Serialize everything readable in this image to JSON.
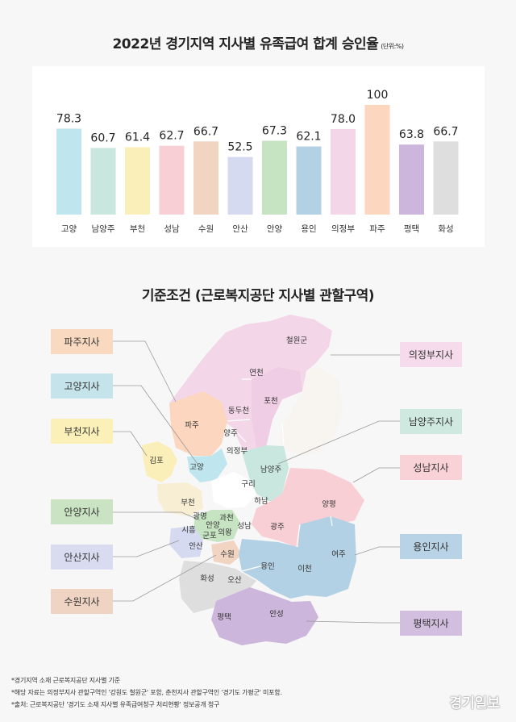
{
  "chart_title": "2022년 경기지역 지사별 유족급여 합계 승인율",
  "chart_unit": "(단위:%)",
  "chart_data": {
    "type": "bar",
    "categories": [
      "고양",
      "남양주",
      "부천",
      "성남",
      "수원",
      "안산",
      "안양",
      "용인",
      "의정부",
      "파주",
      "평택",
      "화성"
    ],
    "values": [
      78.3,
      60.7,
      61.4,
      62.7,
      66.7,
      52.5,
      67.3,
      62.1,
      78.0,
      100,
      63.8,
      66.7
    ],
    "value_labels": [
      "78.3",
      "60.7",
      "61.4",
      "62.7",
      "66.7",
      "52.5",
      "67.3",
      "62.1",
      "78.0",
      "100",
      "63.8",
      "66.7"
    ],
    "colors": [
      "#bfe6ee",
      "#c9e6df",
      "#fbefb9",
      "#f8cfd4",
      "#f2d4c3",
      "#d6daf0",
      "#c6e3c2",
      "#b3d1e4",
      "#f3d7e9",
      "#fcd6bf",
      "#cdb6dc",
      "#dedede"
    ],
    "ylim": [
      0,
      100
    ]
  },
  "map_title": "기준조건 (근로복지공단 지사별 관할구역)",
  "branches_left": [
    {
      "label": "파주지사",
      "color": "#f9d9bf"
    },
    {
      "label": "고양지사",
      "color": "#c4e3ea"
    },
    {
      "label": "부천지사",
      "color": "#fbf0b8"
    },
    {
      "label": "안양지사",
      "color": "#c9e3c3"
    },
    {
      "label": "안산지사",
      "color": "#d9dcf1"
    },
    {
      "label": "수원지사",
      "color": "#efd4c4"
    }
  ],
  "branches_right": [
    {
      "label": "의정부지사",
      "color": "#f5dbeb"
    },
    {
      "label": "남양주지사",
      "color": "#cfe9e1"
    },
    {
      "label": "성남지사",
      "color": "#f8d2d7"
    },
    {
      "label": "용인지사",
      "color": "#b8d3e6"
    },
    {
      "label": "평택지사",
      "color": "#d2bfe0"
    }
  ],
  "regions": [
    "철원군",
    "연천",
    "포천",
    "동두천",
    "파주",
    "양주",
    "의정부",
    "김포",
    "고양",
    "남양주",
    "구리",
    "부천",
    "하남",
    "양평",
    "광명",
    "안양",
    "과천",
    "시흥",
    "군포",
    "의왕",
    "성남",
    "광주",
    "안산",
    "수원",
    "여주",
    "용인",
    "이천",
    "화성",
    "오산",
    "평택",
    "안성"
  ],
  "footnotes": [
    "*경기지역 소재 근로복지공단 지사별 기준",
    "*해당 자료는 의정부지사 관할구역인 '강원도 철원군' 포함, 춘천지사 관할구역인 '경기도 가평군' 미포함.",
    "*출처: 근로복지공단 '경기도 소재 지사별 유족급여청구 처리현황' 정보공개 청구"
  ],
  "logo": "경기일보"
}
